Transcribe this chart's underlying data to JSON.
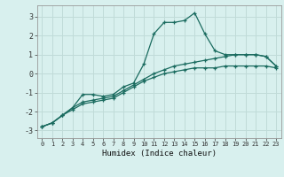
{
  "xlabel": "Humidex (Indice chaleur)",
  "bg_color": "#d8f0ee",
  "grid_color": "#c0dbd8",
  "line_color": "#1a6b5f",
  "xlim": [
    -0.5,
    23.5
  ],
  "ylim": [
    -3.4,
    3.6
  ],
  "xticks": [
    0,
    1,
    2,
    3,
    4,
    5,
    6,
    7,
    8,
    9,
    10,
    11,
    12,
    13,
    14,
    15,
    16,
    17,
    18,
    19,
    20,
    21,
    22,
    23
  ],
  "yticks": [
    -3,
    -2,
    -1,
    0,
    1,
    2,
    3
  ],
  "line1_x": [
    0,
    1,
    2,
    3,
    4,
    5,
    6,
    7,
    8,
    9,
    10,
    11,
    12,
    13,
    14,
    15,
    16,
    17,
    18,
    19,
    20,
    21,
    22,
    23
  ],
  "line1_y": [
    -2.8,
    -2.6,
    -2.2,
    -1.8,
    -1.1,
    -1.1,
    -1.2,
    -1.1,
    -0.7,
    -0.5,
    0.5,
    2.1,
    2.7,
    2.7,
    2.8,
    3.2,
    2.1,
    1.2,
    1.0,
    1.0,
    1.0,
    1.0,
    0.9,
    0.4
  ],
  "line2_x": [
    0,
    1,
    2,
    3,
    4,
    5,
    6,
    7,
    8,
    9,
    10,
    11,
    12,
    13,
    14,
    15,
    16,
    17,
    18,
    19,
    20,
    21,
    22,
    23
  ],
  "line2_y": [
    -2.8,
    -2.6,
    -2.2,
    -1.8,
    -1.5,
    -1.4,
    -1.3,
    -1.2,
    -0.9,
    -0.6,
    -0.3,
    0.0,
    0.2,
    0.4,
    0.5,
    0.6,
    0.7,
    0.8,
    0.9,
    1.0,
    1.0,
    1.0,
    0.9,
    0.4
  ],
  "line3_x": [
    0,
    1,
    2,
    3,
    4,
    5,
    6,
    7,
    8,
    9,
    10,
    11,
    12,
    13,
    14,
    15,
    16,
    17,
    18,
    19,
    20,
    21,
    22,
    23
  ],
  "line3_y": [
    -2.8,
    -2.6,
    -2.2,
    -1.9,
    -1.6,
    -1.5,
    -1.4,
    -1.3,
    -1.0,
    -0.7,
    -0.4,
    -0.2,
    0.0,
    0.1,
    0.2,
    0.3,
    0.3,
    0.3,
    0.4,
    0.4,
    0.4,
    0.4,
    0.4,
    0.3
  ]
}
